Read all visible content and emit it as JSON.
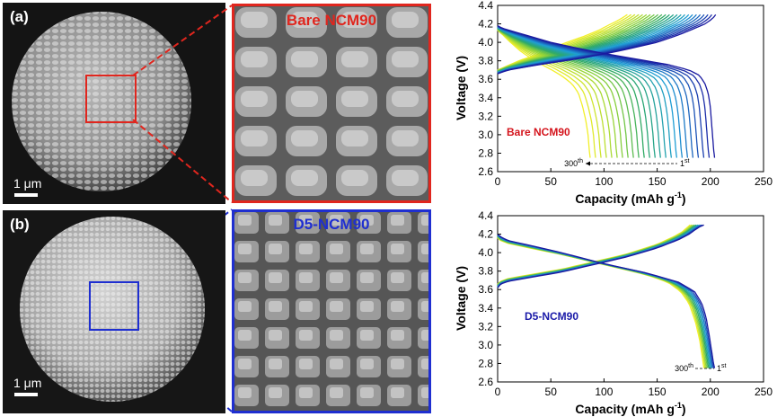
{
  "figure": {
    "row_a": {
      "panel_label": "(a)",
      "scale_bar_text": "1 μm",
      "zoom_title": "Bare NCM90",
      "zoom_color": "#e0261e",
      "chart_sample_label": "Bare NCM90",
      "chart_sample_color": "#d4141c",
      "cycle_last_label": "300",
      "cycle_last_sup": "th",
      "cycle_first_label": "1",
      "cycle_first_sup": "st"
    },
    "row_b": {
      "panel_label": "(b)",
      "scale_bar_text": "1 μm",
      "zoom_title": "D5-NCM90",
      "zoom_color": "#1f2fd0",
      "chart_sample_label": "D5-NCM90",
      "chart_sample_color": "#1a1aa8",
      "cycle_last_label": "300",
      "cycle_last_sup": "th",
      "cycle_first_label": "1",
      "cycle_first_sup": "st"
    }
  },
  "chart_data": [
    {
      "type": "line",
      "title": "",
      "sample": "Bare NCM90",
      "xlabel": "Capacity (mAh g",
      "xlabel_sup": "-1",
      "xlabel_tail": ")",
      "ylabel": "Voltage (V)",
      "xlim": [
        0,
        250
      ],
      "ylim": [
        2.6,
        4.4
      ],
      "xticks": [
        0,
        50,
        100,
        150,
        200,
        250
      ],
      "yticks": [
        2.6,
        2.8,
        3.0,
        3.2,
        3.4,
        3.6,
        3.8,
        4.0,
        4.2,
        4.4
      ],
      "series_count": 24,
      "color_first_cycle": "#1a1aa0",
      "color_last_cycle": "#f2ef2a",
      "charge_first_cycle": {
        "x": [
          0,
          10,
          40,
          80,
          120,
          150,
          170,
          185,
          195,
          200,
          203,
          205
        ],
        "y": [
          3.66,
          3.7,
          3.76,
          3.83,
          3.92,
          4.0,
          4.08,
          4.15,
          4.2,
          4.24,
          4.27,
          4.3
        ]
      },
      "charge_last_cycle": {
        "x": [
          0,
          8,
          20,
          35,
          50,
          65,
          80,
          95,
          105,
          112,
          118,
          122
        ],
        "y": [
          3.7,
          3.74,
          3.8,
          3.86,
          3.93,
          4.0,
          4.06,
          4.13,
          4.19,
          4.23,
          4.27,
          4.3
        ]
      },
      "discharge_first_cycle": {
        "x": [
          0,
          5,
          20,
          50,
          90,
          130,
          160,
          180,
          190,
          195,
          198,
          200,
          201,
          202,
          203,
          204
        ],
        "y": [
          4.18,
          4.15,
          4.1,
          4.0,
          3.9,
          3.82,
          3.76,
          3.7,
          3.64,
          3.55,
          3.45,
          3.3,
          3.15,
          3.0,
          2.85,
          2.75
        ]
      },
      "discharge_last_cycle": {
        "x": [
          0,
          5,
          12,
          22,
          35,
          48,
          60,
          70,
          76,
          80,
          83,
          85,
          86,
          87
        ],
        "y": [
          4.13,
          4.08,
          4.0,
          3.9,
          3.8,
          3.72,
          3.64,
          3.55,
          3.45,
          3.3,
          3.15,
          3.0,
          2.85,
          2.75
        ]
      }
    },
    {
      "type": "line",
      "title": "",
      "sample": "D5-NCM90",
      "xlabel": "Capacity (mAh g",
      "xlabel_sup": "-1",
      "xlabel_tail": ")",
      "ylabel": "Voltage (V)",
      "xlim": [
        0,
        250
      ],
      "ylim": [
        2.6,
        4.4
      ],
      "xticks": [
        0,
        50,
        100,
        150,
        200,
        250
      ],
      "yticks": [
        2.6,
        2.8,
        3.0,
        3.2,
        3.4,
        3.6,
        3.8,
        4.0,
        4.2,
        4.4
      ],
      "series_count": 10,
      "color_first_cycle": "#1a1aa0",
      "color_last_cycle": "#f2ef2a",
      "charge_first_cycle": {
        "x": [
          0,
          3,
          10,
          30,
          60,
          90,
          120,
          150,
          170,
          180,
          186,
          190,
          194
        ],
        "y": [
          3.62,
          3.66,
          3.69,
          3.73,
          3.79,
          3.87,
          3.95,
          4.05,
          4.14,
          4.2,
          4.25,
          4.28,
          4.3
        ]
      },
      "charge_last_cycle": {
        "x": [
          0,
          3,
          10,
          30,
          60,
          90,
          120,
          150,
          165,
          173,
          178,
          181
        ],
        "y": [
          3.66,
          3.69,
          3.72,
          3.76,
          3.82,
          3.9,
          3.98,
          4.09,
          4.17,
          4.22,
          4.27,
          4.3
        ]
      },
      "discharge_first_cycle": {
        "x": [
          0,
          3,
          10,
          30,
          60,
          100,
          140,
          170,
          185,
          192,
          196,
          199,
          201,
          203,
          204
        ],
        "y": [
          4.2,
          4.17,
          4.13,
          4.08,
          4.0,
          3.88,
          3.78,
          3.68,
          3.58,
          3.45,
          3.3,
          3.1,
          2.95,
          2.8,
          2.75
        ]
      },
      "discharge_last_cycle": {
        "x": [
          0,
          3,
          10,
          30,
          60,
          100,
          140,
          160,
          172,
          180,
          186,
          190,
          192,
          194
        ],
        "y": [
          4.16,
          4.13,
          4.1,
          4.05,
          3.98,
          3.87,
          3.76,
          3.68,
          3.58,
          3.45,
          3.25,
          3.05,
          2.9,
          2.75
        ]
      }
    }
  ]
}
